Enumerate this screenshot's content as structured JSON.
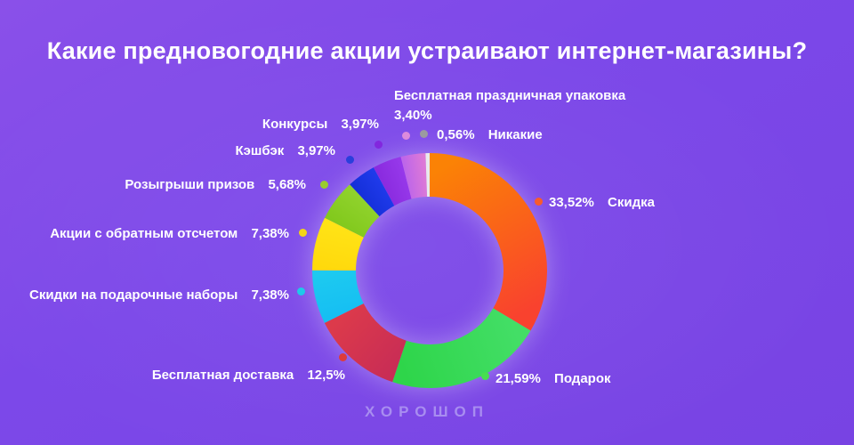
{
  "title": "Какие предновогодние акции устраивают интернет-магазины?",
  "footer": {
    "brand": "ХОРОШОП"
  },
  "colors": {
    "background_top": "#8A50E9",
    "background_bottom": "#7843E3",
    "text": "#FFFFFF",
    "brand_text": "#A88DF0"
  },
  "chart_data": {
    "type": "pie",
    "subtype": "donut",
    "title": "Какие предновогодние акции устраивают интернет-магазины?",
    "start_angle_deg": 0,
    "direction": "clockwise",
    "legend_position": "radial-callouts",
    "segments": [
      {
        "label": "Скидка",
        "value": 33.52,
        "pct_label": "33,52%",
        "color": "#FB8205",
        "color2": "#F9422E",
        "bullet": "#F85B2B"
      },
      {
        "label": "Подарок",
        "value": 21.59,
        "pct_label": "21,59%",
        "color": "#43DE66",
        "color2": "#2ED54A",
        "bullet": "#47DE4F"
      },
      {
        "label": "Бесплатная доставка",
        "value": 12.5,
        "pct_label": "12,5%",
        "color": "#C92D55",
        "color2": "#DC3A4B",
        "bullet": "#DE3B3B"
      },
      {
        "label": "Скидки на подарочные наборы",
        "value": 7.38,
        "pct_label": "7,38%",
        "color": "#16BFF2",
        "color2": "#1DCAF0",
        "bullet": "#1EC9E9"
      },
      {
        "label": "Акции с обратным отсчетом",
        "value": 7.38,
        "pct_label": "7,38%",
        "color": "#FFD90C",
        "color2": "#FFE316",
        "bullet": "#F2D418"
      },
      {
        "label": "Розыгрыши призов",
        "value": 5.68,
        "pct_label": "5,68%",
        "color": "#82C91D",
        "color2": "#90D22C",
        "bullet": "#9ACB2E"
      },
      {
        "label": "Кэшбэк",
        "value": 3.97,
        "pct_label": "3,97%",
        "color": "#1530DA",
        "color2": "#1F3AEA",
        "bullet": "#2A3FDC"
      },
      {
        "label": "Конкурсы",
        "value": 3.97,
        "pct_label": "3,97%",
        "color": "#8A2BDF",
        "color2": "#9638EA",
        "bullet": "#8227DE"
      },
      {
        "label": "Бесплатная праздничная упаковка",
        "value": 3.4,
        "pct_label": "3,40%",
        "color": "#BE66E9",
        "color2": "#DE7AD6",
        "bullet": "#DC8ADC"
      },
      {
        "label": "Никакие",
        "value": 0.56,
        "pct_label": "0,56%",
        "color": "#E9E9EC",
        "bullet": "#9B9BA0"
      }
    ]
  }
}
